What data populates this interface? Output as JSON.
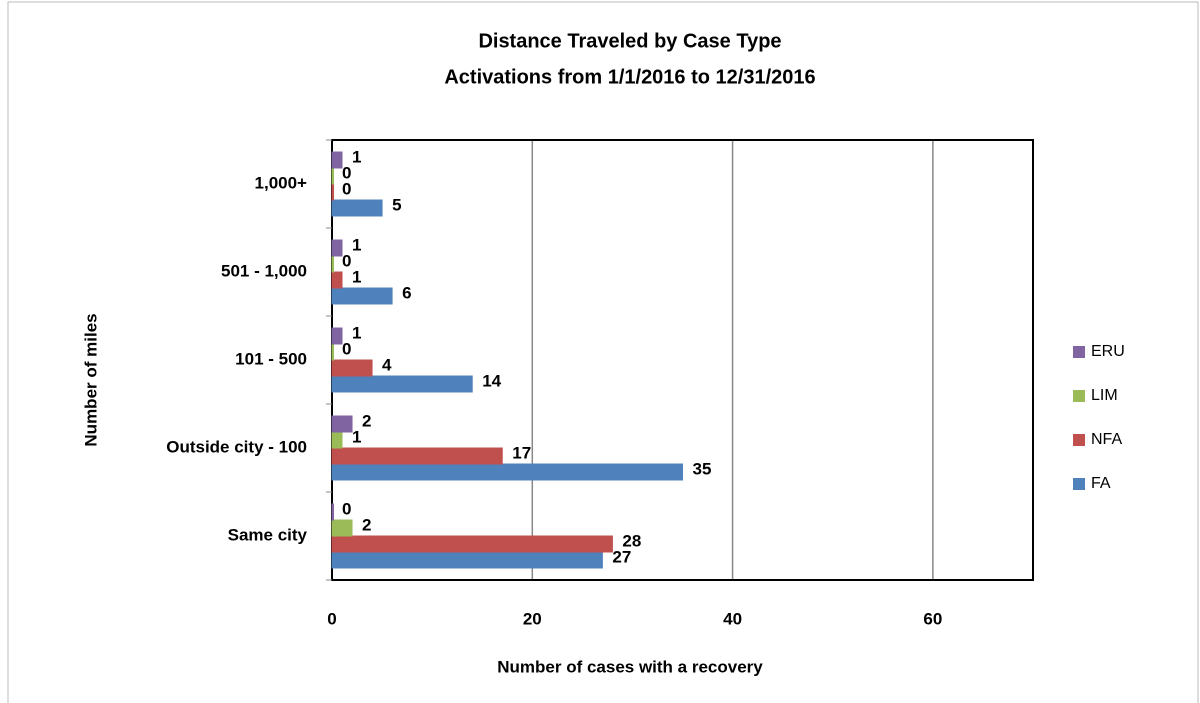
{
  "chart_data": {
    "type": "bar",
    "orientation": "horizontal",
    "title": "Distance Traveled by Case Type",
    "subtitle": "Activations from 1/1/2016 to 12/31/2016",
    "x_label": "Number of cases with a recovery",
    "y_label": "Number of miles",
    "categories": [
      "Same city",
      "Outside city - 100",
      "101 - 500",
      "501 - 1,000",
      "1,000+"
    ],
    "series": [
      {
        "name": "FA",
        "color": "#4f81bd",
        "values": [
          27,
          35,
          14,
          6,
          5
        ]
      },
      {
        "name": "NFA",
        "color": "#c0504d",
        "values": [
          28,
          17,
          4,
          1,
          0
        ]
      },
      {
        "name": "LIM",
        "color": "#9bbb59",
        "values": [
          2,
          1,
          0,
          0,
          0
        ]
      },
      {
        "name": "ERU",
        "color": "#8064a2",
        "values": [
          0,
          2,
          1,
          1,
          1
        ]
      }
    ],
    "xlim": [
      0,
      70
    ],
    "xticks": [
      0,
      20,
      40,
      60
    ],
    "grid": true,
    "legend": "right"
  }
}
